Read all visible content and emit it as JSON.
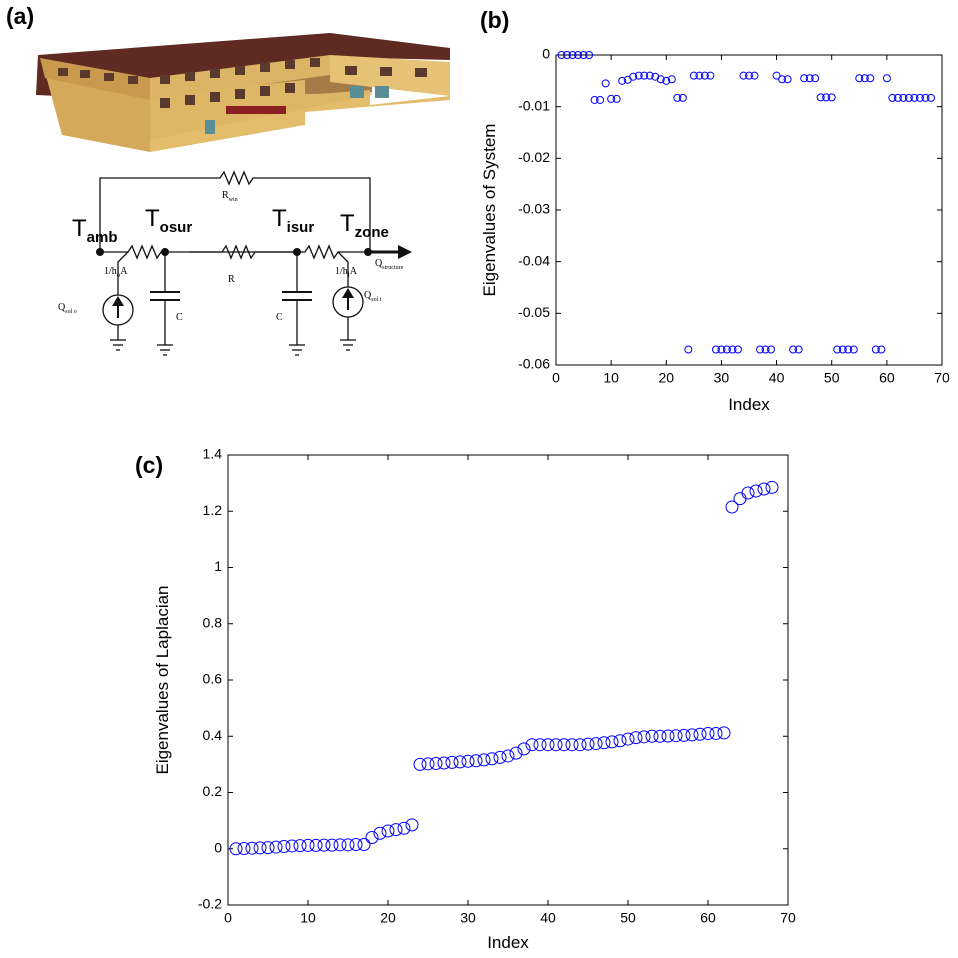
{
  "diagram": {
    "panel_label": "(a)",
    "nodes": [
      {
        "main": "T",
        "sub": "amb"
      },
      {
        "main": "T",
        "sub": "osur"
      },
      {
        "main": "T",
        "sub": "isur"
      },
      {
        "main": "T",
        "sub": "zone"
      }
    ],
    "r_win": {
      "main": "R",
      "sub": "win"
    },
    "r_o": {
      "main": "1/h",
      "sub": "o",
      "tail": "A"
    },
    "r": "R",
    "r_i": {
      "main": "1/h",
      "sub": "i",
      "tail": "A"
    },
    "q_structure": {
      "main": "Q",
      "sub": "structure"
    },
    "q_sol_o": {
      "main": "Q",
      "sub": "sol o"
    },
    "q_sol_i": {
      "main": "Q",
      "sub": "sol i"
    },
    "c_o": "C",
    "c_i": "C"
  },
  "chart_data": [
    {
      "type": "scatter",
      "panel_label": "(b)",
      "xlabel": "Index",
      "ylabel": "Eigenvalues of System",
      "color": "#0000ff",
      "grid": false,
      "xlim": [
        0,
        70
      ],
      "xticks": [
        0,
        10,
        20,
        30,
        40,
        50,
        60,
        70
      ],
      "ylim": [
        -0.06,
        0
      ],
      "yticks": [
        -0.06,
        -0.05,
        -0.04,
        -0.03,
        -0.02,
        -0.01,
        0
      ],
      "x": [
        1,
        2,
        3,
        4,
        5,
        6,
        7,
        8,
        9,
        10,
        11,
        12,
        13,
        14,
        15,
        16,
        17,
        18,
        19,
        20,
        21,
        22,
        23,
        24,
        25,
        26,
        27,
        28,
        29,
        30,
        31,
        32,
        33,
        34,
        35,
        36,
        37,
        38,
        39,
        40,
        41,
        42,
        43,
        44,
        45,
        46,
        47,
        48,
        49,
        50,
        51,
        52,
        53,
        54,
        55,
        56,
        57,
        58,
        59,
        60,
        61,
        62,
        63,
        64,
        65,
        66,
        67,
        68
      ],
      "values": [
        0,
        0,
        0,
        0,
        0,
        0,
        -0.0087,
        -0.0087,
        -0.0055,
        -0.0085,
        -0.0085,
        -0.005,
        -0.0048,
        -0.0042,
        -0.004,
        -0.004,
        -0.004,
        -0.0042,
        -0.0047,
        -0.005,
        -0.0047,
        -0.0083,
        -0.0083,
        -0.057,
        -0.004,
        -0.004,
        -0.004,
        -0.004,
        -0.057,
        -0.057,
        -0.057,
        -0.057,
        -0.057,
        -0.004,
        -0.004,
        -0.004,
        -0.057,
        -0.057,
        -0.057,
        -0.004,
        -0.0047,
        -0.0047,
        -0.057,
        -0.057,
        -0.0045,
        -0.0045,
        -0.0045,
        -0.0082,
        -0.0082,
        -0.0082,
        -0.057,
        -0.057,
        -0.057,
        -0.057,
        -0.0045,
        -0.0045,
        -0.0045,
        -0.057,
        -0.057,
        -0.0045,
        -0.0083,
        -0.0083,
        -0.0083,
        -0.0083,
        -0.0083,
        -0.0083,
        -0.0083,
        -0.0083
      ]
    },
    {
      "type": "scatter",
      "panel_label": "(c)",
      "xlabel": "Index",
      "ylabel": "Eigenvalues of Laplacian",
      "color": "#0000ff",
      "grid": false,
      "xlim": [
        0,
        70
      ],
      "xticks": [
        0,
        10,
        20,
        30,
        40,
        50,
        60,
        70
      ],
      "ylim": [
        -0.2,
        1.4
      ],
      "yticks": [
        -0.2,
        0,
        0.2,
        0.4,
        0.6,
        0.8,
        1,
        1.2,
        1.4
      ],
      "x": [
        1,
        2,
        3,
        4,
        5,
        6,
        7,
        8,
        9,
        10,
        11,
        12,
        13,
        14,
        15,
        16,
        17,
        18,
        19,
        20,
        21,
        22,
        23,
        24,
        25,
        26,
        27,
        28,
        29,
        30,
        31,
        32,
        33,
        34,
        35,
        36,
        37,
        38,
        39,
        40,
        41,
        42,
        43,
        44,
        45,
        46,
        47,
        48,
        49,
        50,
        51,
        52,
        53,
        54,
        55,
        56,
        57,
        58,
        59,
        60,
        61,
        62,
        63,
        64,
        65,
        66,
        67,
        68
      ],
      "values": [
        0,
        0.001,
        0.002,
        0.003,
        0.004,
        0.006,
        0.008,
        0.01,
        0.011,
        0.012,
        0.012,
        0.013,
        0.013,
        0.014,
        0.014,
        0.015,
        0.015,
        0.04,
        0.055,
        0.063,
        0.068,
        0.073,
        0.085,
        0.3,
        0.302,
        0.303,
        0.305,
        0.307,
        0.309,
        0.311,
        0.313,
        0.316,
        0.32,
        0.325,
        0.33,
        0.34,
        0.355,
        0.37,
        0.37,
        0.37,
        0.37,
        0.37,
        0.37,
        0.37,
        0.372,
        0.374,
        0.377,
        0.38,
        0.384,
        0.39,
        0.395,
        0.398,
        0.4,
        0.4,
        0.401,
        0.402,
        0.403,
        0.405,
        0.407,
        0.41,
        0.41,
        0.412,
        1.215,
        1.245,
        1.265,
        1.272,
        1.279,
        1.285
      ]
    }
  ]
}
